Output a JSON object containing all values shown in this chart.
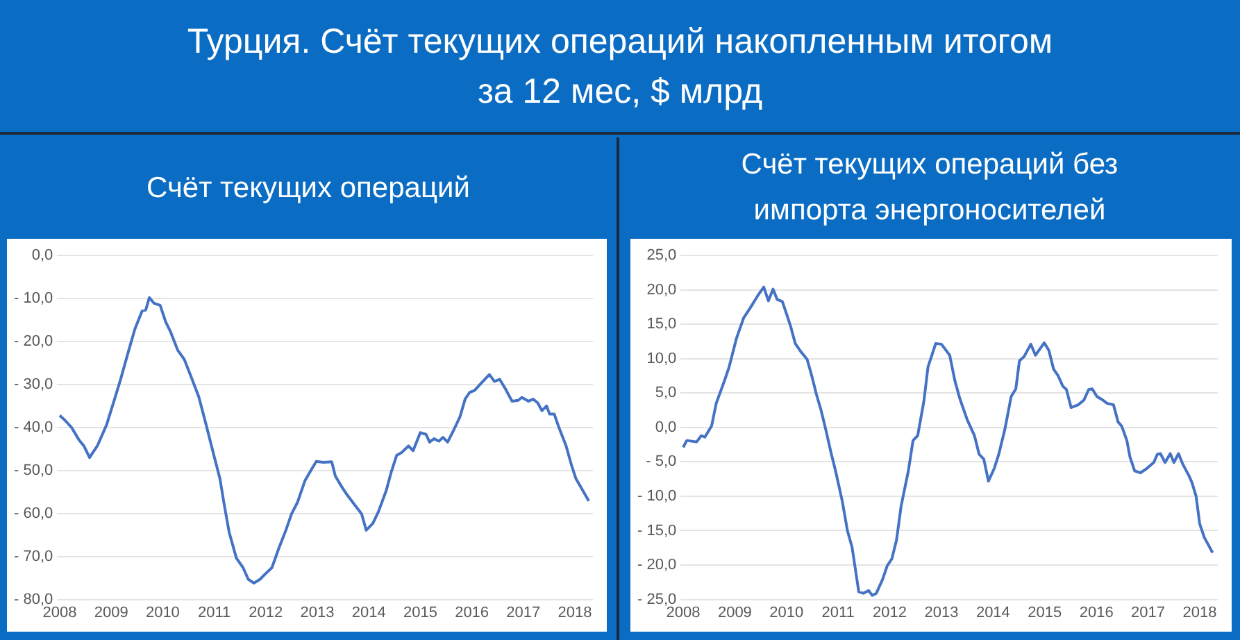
{
  "chart_data": [
    {
      "type": "line",
      "title": "Турция. Счёт текущих операций накопленным итогом за 12 мес, $ млрд",
      "subtitle": "Счёт текущих операций",
      "color": "#4472c4",
      "grid": "y",
      "legend": false,
      "marker": "none",
      "x": [
        2008.0,
        2008.1,
        2008.23,
        2008.37,
        2008.47,
        2008.58,
        2008.73,
        2008.91,
        2009.05,
        2009.19,
        2009.33,
        2009.46,
        2009.6,
        2009.67,
        2009.74,
        2009.83,
        2009.95,
        2010.06,
        2010.15,
        2010.29,
        2010.42,
        2010.56,
        2010.7,
        2010.83,
        2010.97,
        2011.11,
        2011.2,
        2011.29,
        2011.43,
        2011.56,
        2011.66,
        2011.77,
        2011.89,
        2011.98,
        2012.12,
        2012.25,
        2012.39,
        2012.5,
        2012.62,
        2012.76,
        2012.89,
        2012.98,
        2013.12,
        2013.28,
        2013.35,
        2013.49,
        2013.58,
        2013.72,
        2013.86,
        2013.95,
        2014.08,
        2014.19,
        2014.34,
        2014.43,
        2014.54,
        2014.63,
        2014.77,
        2014.86,
        2015.0,
        2015.11,
        2015.18,
        2015.27,
        2015.36,
        2015.44,
        2015.53,
        2015.64,
        2015.77,
        2015.87,
        2015.96,
        2016.05,
        2016.19,
        2016.34,
        2016.44,
        2016.54,
        2016.65,
        2016.78,
        2016.9,
        2016.97,
        2017.1,
        2017.19,
        2017.28,
        2017.36,
        2017.45,
        2017.51,
        2017.6,
        2017.69,
        2017.83,
        2017.93,
        2018.02,
        2018.15,
        2018.27
      ],
      "values": [
        -37.2,
        -38.3,
        -40,
        -42.8,
        -44.3,
        -47,
        -44.3,
        -39.4,
        -34,
        -28.5,
        -22.5,
        -17.1,
        -12.9,
        -12.7,
        -9.8,
        -11.1,
        -11.6,
        -15.5,
        -17.7,
        -22,
        -24.2,
        -28.5,
        -32.9,
        -38.8,
        -45.4,
        -51.9,
        -58.4,
        -64.4,
        -70.4,
        -72.6,
        -75.3,
        -76.2,
        -75.3,
        -74.2,
        -72.6,
        -68.2,
        -63.9,
        -60.1,
        -57.3,
        -52.4,
        -49.7,
        -47.9,
        -48.1,
        -48,
        -51.3,
        -54.1,
        -55.7,
        -57.9,
        -60.1,
        -63.9,
        -62.3,
        -59.5,
        -54.6,
        -50.6,
        -46.5,
        -45.9,
        -44.3,
        -45.4,
        -41.2,
        -41.6,
        -43.4,
        -42.6,
        -43.2,
        -42.3,
        -43.4,
        -40.8,
        -37.5,
        -33.4,
        -31.8,
        -31.4,
        -29.6,
        -27.7,
        -29.3,
        -28.8,
        -31,
        -33.9,
        -33.7,
        -33,
        -33.9,
        -33.4,
        -34.3,
        -36.1,
        -35,
        -36.9,
        -36.9,
        -40,
        -44.3,
        -48.6,
        -51.9,
        -54.6,
        -57.1
      ],
      "xlim": [
        2007.95,
        2018.35
      ],
      "xticks": [
        2008,
        2009,
        2010,
        2011,
        2012,
        2013,
        2014,
        2015,
        2016,
        2017,
        2018
      ],
      "ylim": [
        -80,
        0
      ],
      "yticks": [
        {
          "value": 0,
          "label": "0,0"
        },
        {
          "value": -10,
          "label": "- 10,0"
        },
        {
          "value": -20,
          "label": "- 20,0"
        },
        {
          "value": -30,
          "label": "- 30,0"
        },
        {
          "value": -40,
          "label": "- 40,0"
        },
        {
          "value": -50,
          "label": "- 50,0"
        },
        {
          "value": -60,
          "label": "- 60,0"
        },
        {
          "value": -70,
          "label": "- 70,0"
        },
        {
          "value": -80,
          "label": "- 80,0"
        }
      ]
    },
    {
      "type": "line",
      "subtitle": "Счёт текущих операций без импорта энергоносителей",
      "color": "#4472c4",
      "grid": "y",
      "legend": false,
      "marker": "none",
      "x": [
        2008.0,
        2008.07,
        2008.26,
        2008.35,
        2008.42,
        2008.55,
        2008.64,
        2008.8,
        2008.89,
        2009.03,
        2009.17,
        2009.3,
        2009.44,
        2009.56,
        2009.65,
        2009.74,
        2009.82,
        2009.92,
        2010.01,
        2010.08,
        2010.17,
        2010.28,
        2010.4,
        2010.49,
        2010.58,
        2010.67,
        2010.77,
        2010.86,
        2010.95,
        2011.08,
        2011.18,
        2011.27,
        2011.4,
        2011.49,
        2011.59,
        2011.66,
        2011.74,
        2011.86,
        2011.95,
        2012.04,
        2012.13,
        2012.22,
        2012.36,
        2012.45,
        2012.54,
        2012.66,
        2012.74,
        2012.89,
        2013.0,
        2013.16,
        2013.26,
        2013.36,
        2013.5,
        2013.64,
        2013.73,
        2013.82,
        2013.91,
        2014.02,
        2014.11,
        2014.23,
        2014.35,
        2014.44,
        2014.51,
        2014.6,
        2014.73,
        2014.82,
        2014.99,
        2015.08,
        2015.17,
        2015.26,
        2015.35,
        2015.42,
        2015.51,
        2015.65,
        2015.76,
        2015.85,
        2015.92,
        2016.01,
        2016.1,
        2016.21,
        2016.33,
        2016.42,
        2016.49,
        2016.59,
        2016.65,
        2016.74,
        2016.85,
        2016.97,
        2017.11,
        2017.18,
        2017.24,
        2017.33,
        2017.43,
        2017.5,
        2017.59,
        2017.67,
        2017.79,
        2017.85,
        2017.93,
        2018.0,
        2018.09,
        2018.25
      ],
      "values": [
        -2.9,
        -1.9,
        -2.1,
        -1.2,
        -1.4,
        0.2,
        3.5,
        6.8,
        8.8,
        12.9,
        15.9,
        17.4,
        19.1,
        20.4,
        18.4,
        20.1,
        18.6,
        18.3,
        16.3,
        14.7,
        12.2,
        11,
        9.9,
        7.5,
        4.8,
        2.5,
        -0.6,
        -3.6,
        -6.3,
        -10.7,
        -15,
        -17.4,
        -23.9,
        -24.1,
        -23.7,
        -24.4,
        -24.1,
        -22.1,
        -20.1,
        -19.1,
        -16.4,
        -11.4,
        -6.3,
        -1.9,
        -1.2,
        3.8,
        8.8,
        12.2,
        12.1,
        10.5,
        6.8,
        4.1,
        1.1,
        -1.2,
        -3.9,
        -4.6,
        -7.8,
        -6,
        -3.9,
        -0.2,
        4.5,
        5.6,
        9.7,
        10.3,
        12.1,
        10.5,
        12.3,
        11.2,
        8.5,
        7.5,
        6,
        5.5,
        2.9,
        3.3,
        4,
        5.5,
        5.6,
        4.5,
        4.1,
        3.5,
        3.3,
        0.8,
        0.2,
        -1.9,
        -4.3,
        -6.3,
        -6.6,
        -6,
        -5.1,
        -3.9,
        -3.8,
        -5.1,
        -3.8,
        -5.1,
        -3.8,
        -5.3,
        -7,
        -8,
        -10,
        -14,
        -16,
        -18.2
      ],
      "xlim": [
        2007.95,
        2018.35
      ],
      "xticks": [
        2008,
        2009,
        2010,
        2011,
        2012,
        2013,
        2014,
        2015,
        2016,
        2017,
        2018
      ],
      "ylim": [
        -25,
        25
      ],
      "yticks": [
        {
          "value": 25,
          "label": "25,0"
        },
        {
          "value": 20,
          "label": "20,0"
        },
        {
          "value": 15,
          "label": "15,0"
        },
        {
          "value": 10,
          "label": "10,0"
        },
        {
          "value": 5,
          "label": "5,0"
        },
        {
          "value": 0,
          "label": "0,0"
        },
        {
          "value": -5,
          "label": "- 5,0"
        },
        {
          "value": -10,
          "label": "- 10,0"
        },
        {
          "value": -15,
          "label": "- 15,0"
        },
        {
          "value": -20,
          "label": "- 20,0"
        },
        {
          "value": -25,
          "label": "- 25,0"
        }
      ]
    }
  ]
}
